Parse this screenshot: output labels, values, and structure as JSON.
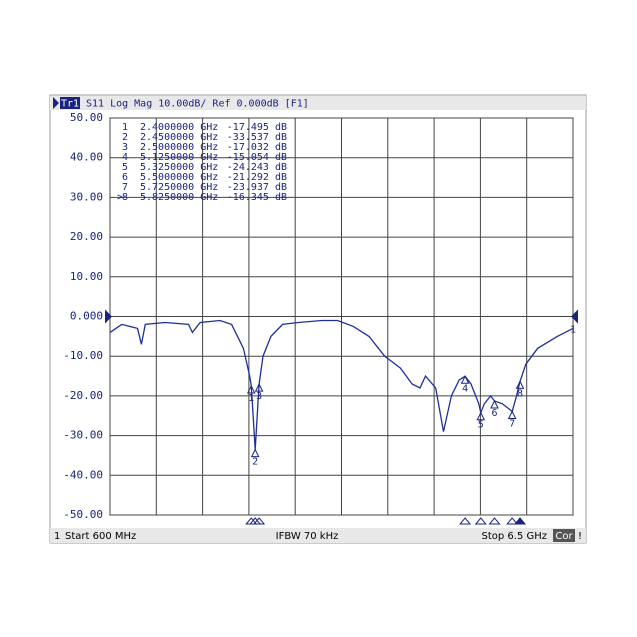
{
  "chart_data": {
    "type": "line",
    "channel_tag": "Tr1",
    "title": "S11 Log Mag 10.00dB/ Ref 0.000dB [F1]",
    "start_label": "Start 600 MHz",
    "stop_label": "Stop 6.5 GHz",
    "ifbw_label": "IFBW 70 kHz",
    "channel_number": "1",
    "cor_label": "Cor",
    "warning_label": "!",
    "trace_label": "1",
    "xlim": [
      0.6,
      6.5
    ],
    "xgrid": [
      0.6,
      1.19,
      1.78,
      2.37,
      2.96,
      3.55,
      4.14,
      4.73,
      5.32,
      5.91,
      6.5
    ],
    "ylim": [
      -50,
      50
    ],
    "yticks": [
      {
        "value": 50,
        "label": "50.00"
      },
      {
        "value": 40,
        "label": "40.00"
      },
      {
        "value": 30,
        "label": "30.00"
      },
      {
        "value": 20,
        "label": "20.00"
      },
      {
        "value": 10,
        "label": "10.00"
      },
      {
        "value": 0,
        "label": "0.000"
      },
      {
        "value": -10,
        "label": "-10.00"
      },
      {
        "value": -20,
        "label": "-20.00"
      },
      {
        "value": -30,
        "label": "-30.00"
      },
      {
        "value": -40,
        "label": "-40.00"
      },
      {
        "value": -50,
        "label": "-50.00"
      }
    ],
    "grid": true,
    "series": [
      {
        "name": "S11",
        "color": "#1f2f9a",
        "x": [
          0.6,
          0.75,
          0.95,
          1.0,
          1.05,
          1.3,
          1.6,
          1.65,
          1.75,
          2.0,
          2.15,
          2.3,
          2.38,
          2.4,
          2.45,
          2.5,
          2.55,
          2.65,
          2.8,
          3.0,
          3.3,
          3.5,
          3.7,
          3.9,
          4.1,
          4.3,
          4.45,
          4.55,
          4.62,
          4.75,
          4.85,
          4.95,
          5.05,
          5.125,
          5.2,
          5.3,
          5.325,
          5.37,
          5.45,
          5.5,
          5.6,
          5.725,
          5.78,
          5.825,
          5.9,
          6.05,
          6.3,
          6.5
        ],
        "values": [
          -4,
          -2,
          -3,
          -7,
          -2,
          -1.5,
          -2,
          -4,
          -1.5,
          -1,
          -2,
          -8,
          -15,
          -17.495,
          -33.537,
          -17.032,
          -10,
          -5,
          -2,
          -1.5,
          -1,
          -1,
          -2.5,
          -5,
          -10,
          -13,
          -17,
          -18,
          -15,
          -18,
          -29,
          -20,
          -16,
          -15.054,
          -17,
          -22,
          -24.243,
          -22,
          -20,
          -21.292,
          -22,
          -23.937,
          -20,
          -16.345,
          -12,
          -8,
          -5,
          -3
        ]
      }
    ],
    "markers": [
      {
        "name": "1",
        "x": 2.4,
        "x_label": "2.4000000 GHz",
        "y": -17.495,
        "y_label": "-17.495 dB"
      },
      {
        "name": "2",
        "x": 2.45,
        "x_label": "2.4500000 GHz",
        "y": -33.537,
        "y_label": "-33.537 dB"
      },
      {
        "name": "3",
        "x": 2.5,
        "x_label": "2.5000000 GHz",
        "y": -17.032,
        "y_label": "-17.032 dB"
      },
      {
        "name": "4",
        "x": 5.125,
        "x_label": "5.1250000 GHz",
        "y": -15.054,
        "y_label": "-15.054 dB"
      },
      {
        "name": "5",
        "x": 5.325,
        "x_label": "5.3250000 GHz",
        "y": -24.243,
        "y_label": "-24.243 dB"
      },
      {
        "name": "6",
        "x": 5.5,
        "x_label": "5.5000000 GHz",
        "y": -21.292,
        "y_label": "-21.292 dB"
      },
      {
        "name": "7",
        "x": 5.725,
        "x_label": "5.7250000 GHz",
        "y": -23.937,
        "y_label": "-23.937 dB"
      },
      {
        "name": "8",
        "x": 5.825,
        "x_label": "5.8250000 GHz",
        "y": -16.345,
        "y_label": "-16.345 dB"
      }
    ],
    "active_marker": 7,
    "active_symbol": ">"
  }
}
